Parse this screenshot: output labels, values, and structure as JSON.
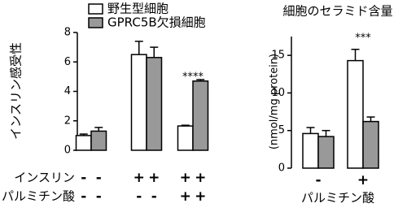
{
  "chart_data": [
    {
      "type": "bar",
      "y_label": "インスリン感受性",
      "categories": [
        null,
        null,
        null
      ],
      "series": [
        {
          "name": "野生型細胞",
          "color": "#ffffff",
          "values": [
            1.0,
            6.5,
            1.65
          ],
          "errors": [
            0.1,
            0.9,
            0.05
          ]
        },
        {
          "name": "GPRC5B欠損細胞",
          "color": "#999999",
          "values": [
            1.3,
            6.3,
            4.7
          ],
          "errors": [
            0.25,
            0.7,
            0.1
          ]
        }
      ],
      "ylim": [
        0,
        8
      ],
      "yticks": [
        0,
        2,
        4,
        6,
        8
      ],
      "annotations": [
        "****"
      ],
      "conditions": [
        {
          "label": "インスリン",
          "signs": [
            "-",
            "-",
            "+",
            "+",
            "+",
            "+"
          ]
        },
        {
          "label": "パルミチン酸",
          "signs": [
            "-",
            "-",
            "-",
            "-",
            "+",
            "+"
          ]
        }
      ]
    },
    {
      "type": "bar",
      "title": "細胞のセラミド含量",
      "y_label": "(nmol/mg protein)",
      "x_label": "パルミチン酸",
      "categories": [
        "-",
        "+"
      ],
      "series": [
        {
          "color": "#ffffff",
          "values": [
            4.6,
            14.3
          ],
          "errors": [
            0.8,
            1.5
          ]
        },
        {
          "color": "#999999",
          "values": [
            4.2,
            6.2
          ],
          "errors": [
            0.8,
            0.6
          ]
        }
      ],
      "ylim": [
        0,
        17.5
      ],
      "yticks": [
        0,
        5,
        10,
        15
      ],
      "annotations": [
        "***"
      ]
    }
  ]
}
